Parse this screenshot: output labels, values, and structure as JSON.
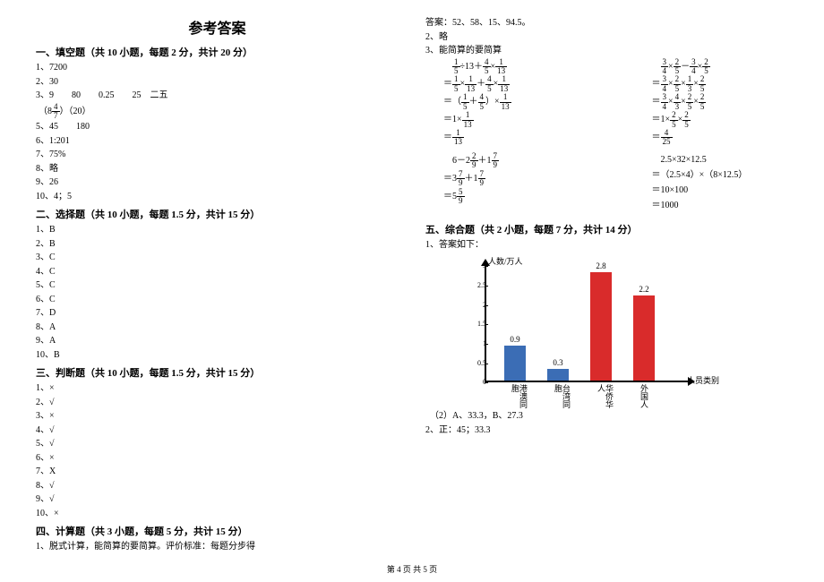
{
  "title": "参考答案",
  "left": {
    "s1": {
      "header": "一、填空题（共 10 小题，每题 2 分，共计 20 分）",
      "items": [
        "1、7200",
        "2、30",
        "3、9　　80　　0.25　　25　二五"
      ],
      "fracLine": {
        "prefix": "（8",
        "num": "4",
        "den": "7",
        "suffix": "）（20）"
      },
      "rest": [
        "5、45　　180",
        "6、1:201",
        "7、75%",
        "8、略",
        "9、26",
        "10、4；5"
      ]
    },
    "s2": {
      "header": "二、选择题（共 10 小题，每题 1.5 分，共计 15 分）",
      "items": [
        "1、B",
        "2、B",
        "3、C",
        "4、C",
        "5、C",
        "6、C",
        "7、D",
        "8、A",
        "9、A",
        "10、B"
      ]
    },
    "s3": {
      "header": "三、判断题（共 10 小题，每题 1.5 分，共计 15 分）",
      "items": [
        "1、×",
        "2、√",
        "3、×",
        "4、√",
        "5、√",
        "6、×",
        "7、X",
        "8、√",
        "9、√",
        "10、×"
      ]
    },
    "s4": {
      "header": "四、计算题（共 3 小题，每题 5 分，共计 15 分）",
      "items": [
        "1、脱式计算，能简算的要简算。评价标准：每题分步得"
      ]
    }
  },
  "right": {
    "top": [
      "答案：52、58、15、94.5。",
      "2、略",
      "3、能简算的要简算"
    ],
    "eq1": {
      "col1": [
        [
          {
            "t": "　"
          },
          {
            "f": [
              "1",
              "5"
            ]
          },
          {
            "t": "÷13＋"
          },
          {
            "f": [
              "4",
              "5"
            ]
          },
          {
            "t": "×"
          },
          {
            "f": [
              "1",
              "13"
            ]
          }
        ],
        [
          {
            "t": "＝"
          },
          {
            "f": [
              "1",
              "5"
            ]
          },
          {
            "t": "×"
          },
          {
            "f": [
              "1",
              "13"
            ]
          },
          {
            "t": "＋"
          },
          {
            "f": [
              "4",
              "5"
            ]
          },
          {
            "t": "×"
          },
          {
            "f": [
              "1",
              "13"
            ]
          }
        ],
        [
          {
            "t": "＝（"
          },
          {
            "f": [
              "1",
              "5"
            ]
          },
          {
            "t": "＋"
          },
          {
            "f": [
              "4",
              "5"
            ]
          },
          {
            "t": "）×"
          },
          {
            "f": [
              "1",
              "13"
            ]
          }
        ],
        [
          {
            "t": "＝1×"
          },
          {
            "f": [
              "1",
              "13"
            ]
          }
        ],
        [
          {
            "t": "＝"
          },
          {
            "f": [
              "1",
              "13"
            ]
          }
        ]
      ],
      "col2": [
        [
          {
            "t": "　"
          },
          {
            "f": [
              "3",
              "4"
            ]
          },
          {
            "t": "×"
          },
          {
            "f": [
              "2",
              "5"
            ]
          },
          {
            "t": "－"
          },
          {
            "f": [
              "3",
              "4"
            ]
          },
          {
            "t": "×"
          },
          {
            "f": [
              "2",
              "5"
            ]
          }
        ],
        [
          {
            "t": "＝"
          },
          {
            "f": [
              "3",
              "4"
            ]
          },
          {
            "t": "×"
          },
          {
            "f": [
              "2",
              "5"
            ]
          },
          {
            "t": "×"
          },
          {
            "f": [
              "1",
              "3"
            ]
          },
          {
            "t": "×"
          },
          {
            "f": [
              "2",
              "5"
            ]
          }
        ],
        [
          {
            "t": "＝"
          },
          {
            "f": [
              "3",
              "4"
            ]
          },
          {
            "t": "×"
          },
          {
            "f": [
              "4",
              "3"
            ]
          },
          {
            "t": "×"
          },
          {
            "f": [
              "2",
              "5"
            ]
          },
          {
            "t": "×"
          },
          {
            "f": [
              "2",
              "5"
            ]
          }
        ],
        [
          {
            "t": "＝1×"
          },
          {
            "f": [
              "2",
              "5"
            ]
          },
          {
            "t": "×"
          },
          {
            "f": [
              "2",
              "5"
            ]
          }
        ],
        [
          {
            "t": "＝"
          },
          {
            "f": [
              "4",
              "25"
            ]
          }
        ]
      ]
    },
    "eq2": {
      "col1": [
        [
          {
            "t": "　6－2"
          },
          {
            "f": [
              "2",
              "9"
            ]
          },
          {
            "t": "＋1"
          },
          {
            "f": [
              "7",
              "9"
            ]
          }
        ],
        [
          {
            "t": "＝3"
          },
          {
            "f": [
              "7",
              "9"
            ]
          },
          {
            "t": "＋1"
          },
          {
            "f": [
              "7",
              "9"
            ]
          }
        ],
        [
          {
            "t": "＝5"
          },
          {
            "f": [
              "5",
              "9"
            ]
          }
        ]
      ],
      "col2": [
        [
          {
            "t": "　2.5×32×12.5"
          }
        ],
        [
          {
            "t": "＝（2.5×4）×（8×12.5）"
          }
        ],
        [
          {
            "t": "＝10×100"
          }
        ],
        [
          {
            "t": "＝1000"
          }
        ]
      ]
    },
    "s5": {
      "header": "五、综合题（共 2 小题，每题 7 分，共计 14 分）",
      "sub": "1、答案如下："
    },
    "chart": {
      "ylabel": "人数/万人",
      "xlabel": "人员类别",
      "ymax": 3,
      "ticks": [
        0,
        0.5,
        1,
        1.5,
        2,
        2.5,
        3
      ],
      "bars": [
        {
          "label": "港澳同胞",
          "value": 0.9,
          "color": "#3b6db5"
        },
        {
          "label": "台湾同胞",
          "value": 0.3,
          "color": "#3b6db5"
        },
        {
          "label": "华侨华人",
          "value": 2.8,
          "color": "#d92b2b"
        },
        {
          "label": "外国人",
          "value": 2.2,
          "color": "#d92b2b"
        }
      ]
    },
    "after": [
      "　（2）A、33.3，B、27.3",
      "2、正：45；33.3"
    ]
  },
  "footer": "第 4 页 共 5 页"
}
